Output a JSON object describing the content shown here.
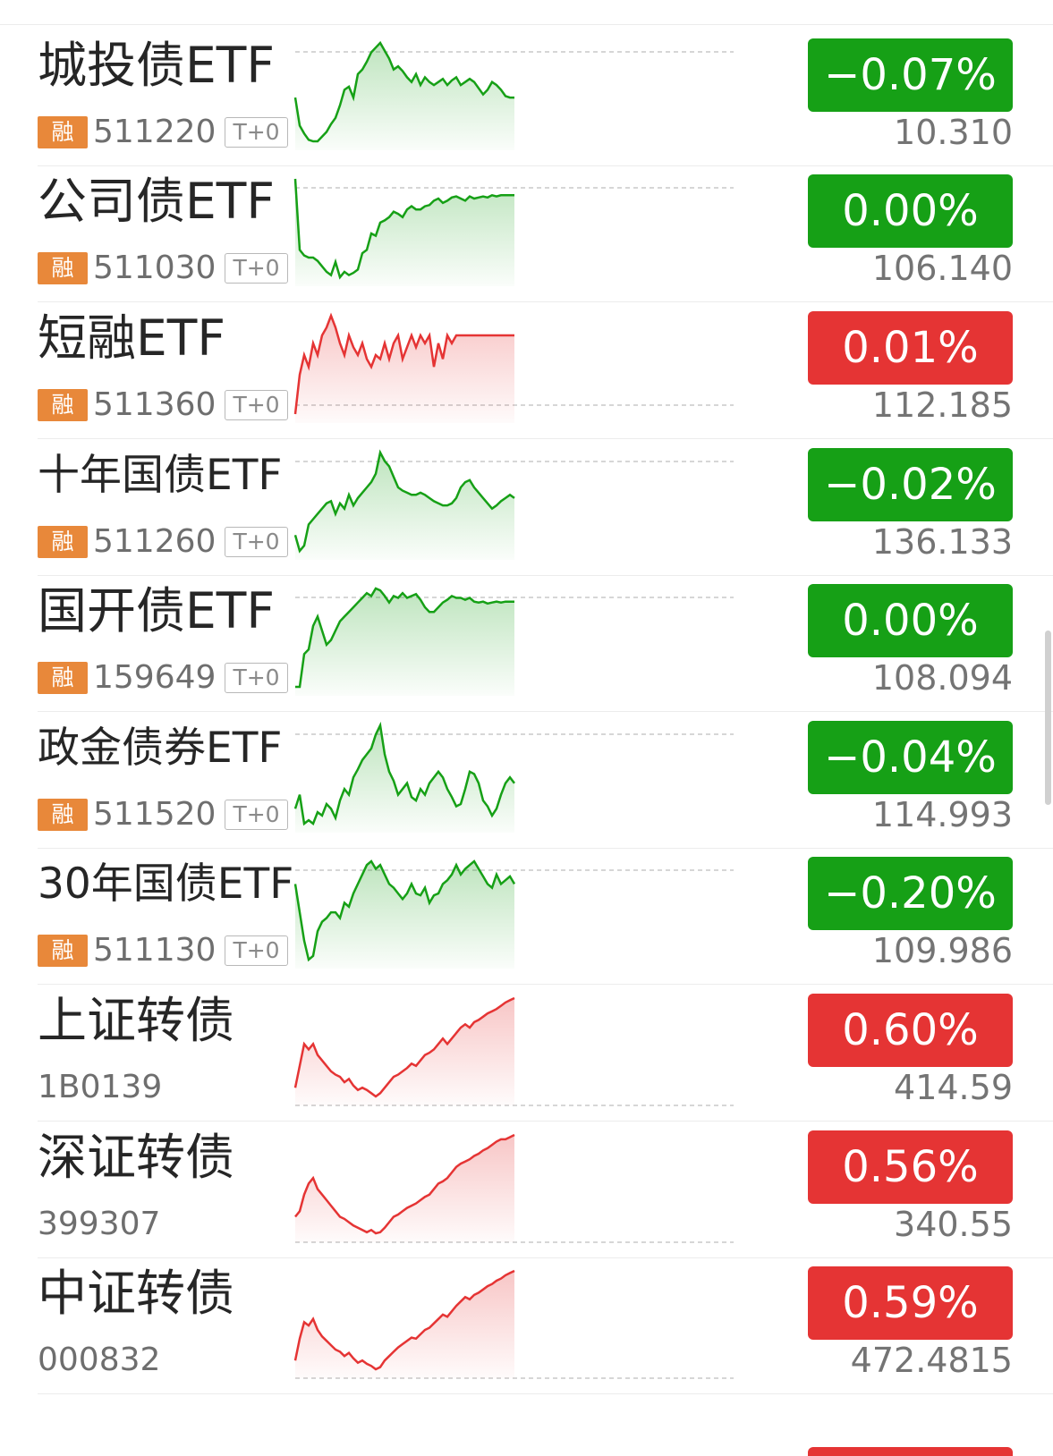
{
  "colors": {
    "up": "#e53434",
    "down": "#16a016",
    "rong_badge": "#e8883a"
  },
  "rong_label": "融",
  "t0_label": "T+0",
  "rows": [
    {
      "name": "城投债ETF",
      "code": "511220",
      "rong": true,
      "t0": true,
      "pct": "-0.07%",
      "price": "10.310",
      "trend": "down",
      "spark": [
        60,
        78,
        83,
        87,
        88,
        88,
        85,
        82,
        77,
        73,
        65,
        55,
        53,
        60,
        45,
        42,
        37,
        31,
        28,
        25,
        30,
        35,
        42,
        40,
        43,
        47,
        50,
        45,
        52,
        47,
        50,
        52,
        50,
        48,
        52,
        49,
        47,
        52,
        50,
        48,
        50,
        54,
        58,
        55,
        50,
        52,
        55,
        59,
        60,
        60
      ]
    },
    {
      "name": "公司债ETF",
      "code": "511030",
      "rong": true,
      "t0": true,
      "pct": "0.00%",
      "price": "106.140",
      "trend": "down",
      "spark": [
        0,
        65,
        70,
        72,
        72,
        75,
        80,
        85,
        88,
        76,
        90,
        85,
        88,
        86,
        83,
        68,
        65,
        50,
        52,
        40,
        38,
        35,
        30,
        32,
        35,
        28,
        25,
        28,
        28,
        25,
        24,
        20,
        18,
        22,
        20,
        17,
        16,
        18,
        20,
        16,
        18,
        17,
        16,
        17,
        15,
        16,
        15,
        15,
        15,
        15
      ]
    },
    {
      "name": "短融ETF",
      "code": "511360",
      "rong": true,
      "t0": true,
      "pct": "0.01%",
      "price": "112.185",
      "trend": "up",
      "spark": [
        50,
        40,
        35,
        38,
        32,
        35,
        30,
        28,
        25,
        28,
        32,
        35,
        30,
        33,
        35,
        32,
        36,
        38,
        35,
        36,
        32,
        36,
        32,
        30,
        36,
        33,
        30,
        33,
        30,
        32,
        30,
        38,
        32,
        36,
        30,
        32,
        30,
        30,
        30,
        30,
        30,
        30,
        30,
        30,
        30,
        30,
        30,
        30,
        30,
        30
      ]
    },
    {
      "name": "十年国债ETF",
      "code": "511260",
      "rong": true,
      "t0": true,
      "pct": "-0.02%",
      "price": "136.133",
      "trend": "down",
      "spark": [
        50,
        65,
        60,
        40,
        35,
        30,
        25,
        20,
        18,
        30,
        20,
        25,
        12,
        22,
        15,
        10,
        5,
        0,
        -8,
        -28,
        -20,
        -15,
        -5,
        5,
        8,
        10,
        12,
        12,
        10,
        12,
        15,
        18,
        20,
        22,
        22,
        20,
        15,
        5,
        0,
        -2,
        5,
        10,
        15,
        20,
        25,
        22,
        18,
        15,
        12,
        15
      ]
    },
    {
      "name": "国开债ETF",
      "code": "159649",
      "rong": true,
      "t0": true,
      "pct": "0.00%",
      "price": "108.094",
      "trend": "down",
      "spark": [
        25,
        25,
        -10,
        -15,
        -40,
        -50,
        -35,
        -20,
        -25,
        -35,
        -45,
        -50,
        -55,
        -60,
        -65,
        -70,
        -75,
        -72,
        -80,
        -78,
        -72,
        -65,
        -72,
        -70,
        -75,
        -70,
        -72,
        -74,
        -68,
        -60,
        -55,
        -55,
        -60,
        -65,
        -68,
        -72,
        -70,
        -70,
        -68,
        -70,
        -66,
        -65,
        -66,
        -64,
        -65,
        -66,
        -65,
        -66,
        -66,
        -66
      ]
    },
    {
      "name": "政金债券ETF",
      "code": "511520",
      "rong": true,
      "t0": true,
      "pct": "-0.04%",
      "price": "114.993",
      "trend": "down",
      "spark": [
        72,
        60,
        85,
        82,
        85,
        75,
        78,
        68,
        72,
        80,
        65,
        55,
        60,
        45,
        38,
        30,
        25,
        20,
        8,
        0,
        25,
        40,
        48,
        60,
        55,
        50,
        62,
        65,
        55,
        60,
        50,
        45,
        40,
        45,
        55,
        62,
        70,
        68,
        55,
        40,
        42,
        50,
        65,
        70,
        78,
        72,
        60,
        50,
        45,
        50
      ]
    },
    {
      "name": "30年国债ETF",
      "code": "511130",
      "rong": true,
      "t0": true,
      "pct": "-0.20%",
      "price": "109.986",
      "trend": "down",
      "spark": [
        40,
        55,
        70,
        80,
        78,
        65,
        60,
        58,
        55,
        55,
        58,
        50,
        52,
        45,
        40,
        35,
        30,
        28,
        32,
        30,
        35,
        40,
        42,
        45,
        48,
        45,
        40,
        45,
        46,
        42,
        50,
        46,
        45,
        40,
        38,
        35,
        30,
        35,
        32,
        30,
        28,
        32,
        36,
        40,
        42,
        35,
        40,
        38,
        36,
        40
      ]
    },
    {
      "name": "上证转债",
      "code": "1B0139",
      "rong": false,
      "t0": false,
      "pct": "0.60%",
      "price": "414.59",
      "trend": "up",
      "spark": [
        70,
        50,
        30,
        35,
        30,
        40,
        45,
        50,
        55,
        58,
        60,
        65,
        62,
        68,
        72,
        70,
        72,
        75,
        78,
        75,
        70,
        65,
        60,
        58,
        55,
        52,
        48,
        50,
        45,
        40,
        38,
        35,
        30,
        25,
        30,
        25,
        20,
        15,
        12,
        15,
        10,
        8,
        5,
        2,
        0,
        -2,
        -5,
        -8,
        -10,
        -12
      ]
    },
    {
      "name": "深证转债",
      "code": "399307",
      "rong": false,
      "t0": false,
      "pct": "0.56%",
      "price": "340.55",
      "trend": "up",
      "spark": [
        60,
        55,
        40,
        30,
        25,
        35,
        40,
        45,
        50,
        55,
        60,
        62,
        65,
        68,
        70,
        72,
        74,
        72,
        75,
        74,
        70,
        65,
        60,
        58,
        55,
        52,
        50,
        48,
        45,
        42,
        40,
        35,
        30,
        28,
        25,
        20,
        15,
        12,
        10,
        8,
        5,
        3,
        0,
        -2,
        -5,
        -8,
        -10,
        -10,
        -12,
        -14
      ]
    },
    {
      "name": "中证转债",
      "code": "000832",
      "rong": false,
      "t0": false,
      "pct": "0.59%",
      "price": "472.4815",
      "trend": "up",
      "spark": [
        70,
        50,
        35,
        38,
        32,
        42,
        48,
        52,
        56,
        60,
        62,
        66,
        63,
        68,
        72,
        70,
        73,
        75,
        78,
        76,
        70,
        66,
        62,
        58,
        55,
        52,
        49,
        50,
        46,
        42,
        40,
        36,
        32,
        28,
        30,
        25,
        20,
        16,
        12,
        14,
        10,
        8,
        5,
        2,
        0,
        -3,
        -5,
        -8,
        -10,
        -12
      ]
    }
  ]
}
